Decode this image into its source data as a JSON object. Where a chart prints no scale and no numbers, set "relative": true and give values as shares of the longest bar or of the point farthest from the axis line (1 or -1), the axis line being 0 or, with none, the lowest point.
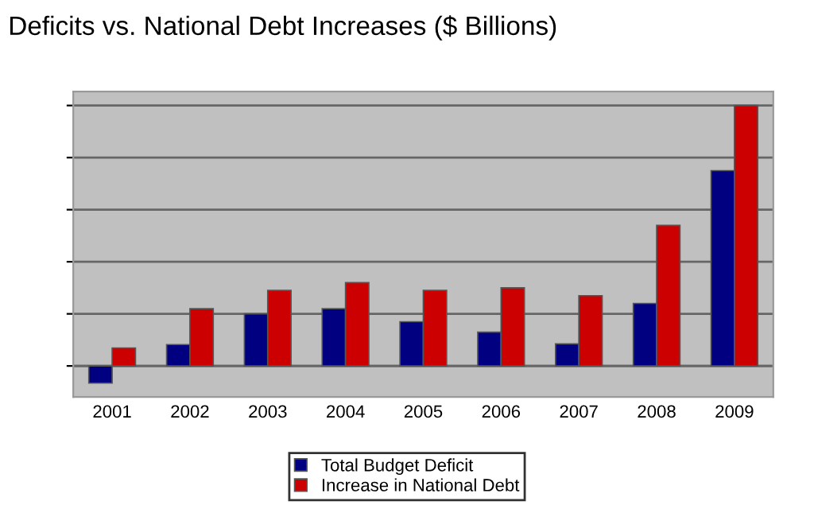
{
  "chart_data": {
    "type": "bar",
    "title": "Deficits vs. National Debt Increases ($ Billions)",
    "categories": [
      "2001",
      "2002",
      "2003",
      "2004",
      "2005",
      "2006",
      "2007",
      "2008",
      "2009"
    ],
    "relative": true,
    "grid": "y",
    "legend": "bottom",
    "series": [
      {
        "name": "Total Budget Deficit",
        "color": "#000080",
        "values": [
          -0.066,
          0.082,
          0.2,
          0.22,
          0.17,
          0.13,
          0.085,
          0.24,
          0.75
        ]
      },
      {
        "name": "Increase in National Debt",
        "color": "#cc0000",
        "values": [
          0.069,
          0.22,
          0.29,
          0.32,
          0.29,
          0.3,
          0.27,
          0.54,
          1
        ]
      }
    ]
  }
}
